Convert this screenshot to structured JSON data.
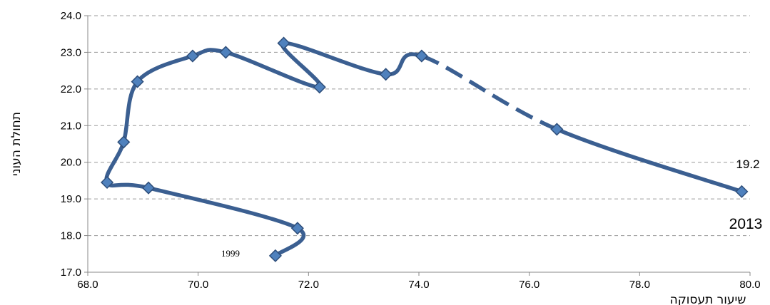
{
  "chart_data": {
    "type": "line",
    "title": "",
    "xlabel": "שיעור תעסוקה",
    "ylabel": "תחולת העוני",
    "xlim": [
      68.0,
      80.0
    ],
    "ylim": [
      17.0,
      24.0
    ],
    "x_ticks": [
      "68.0",
      "70.0",
      "72.0",
      "74.0",
      "76.0",
      "78.0",
      "80.0"
    ],
    "y_ticks": [
      "17.0",
      "18.0",
      "19.0",
      "20.0",
      "21.0",
      "22.0",
      "23.0",
      "24.0"
    ],
    "grid": "horizontal-dashed",
    "line_color": "#3B5F91",
    "marker_color": "#4F81BD",
    "marker": "diamond",
    "series": [
      {
        "points": [
          {
            "x": 71.4,
            "y": 17.45
          },
          {
            "x": 71.8,
            "y": 18.2
          },
          {
            "x": 69.1,
            "y": 19.3
          },
          {
            "x": 68.35,
            "y": 19.45
          },
          {
            "x": 68.65,
            "y": 20.55
          },
          {
            "x": 68.9,
            "y": 22.2
          },
          {
            "x": 69.9,
            "y": 22.9
          },
          {
            "x": 70.5,
            "y": 23.0
          },
          {
            "x": 72.2,
            "y": 22.05
          },
          {
            "x": 71.55,
            "y": 23.25
          },
          {
            "x": 73.4,
            "y": 22.4
          },
          {
            "x": 74.05,
            "y": 22.9
          },
          {
            "x": 76.5,
            "y": 20.9
          },
          {
            "x": 79.85,
            "y": 19.2
          }
        ],
        "dashed_segment": [
          11,
          12
        ]
      }
    ],
    "annotations": {
      "start_year": "1999",
      "end_year": "2013",
      "end_value": "19.2"
    }
  }
}
